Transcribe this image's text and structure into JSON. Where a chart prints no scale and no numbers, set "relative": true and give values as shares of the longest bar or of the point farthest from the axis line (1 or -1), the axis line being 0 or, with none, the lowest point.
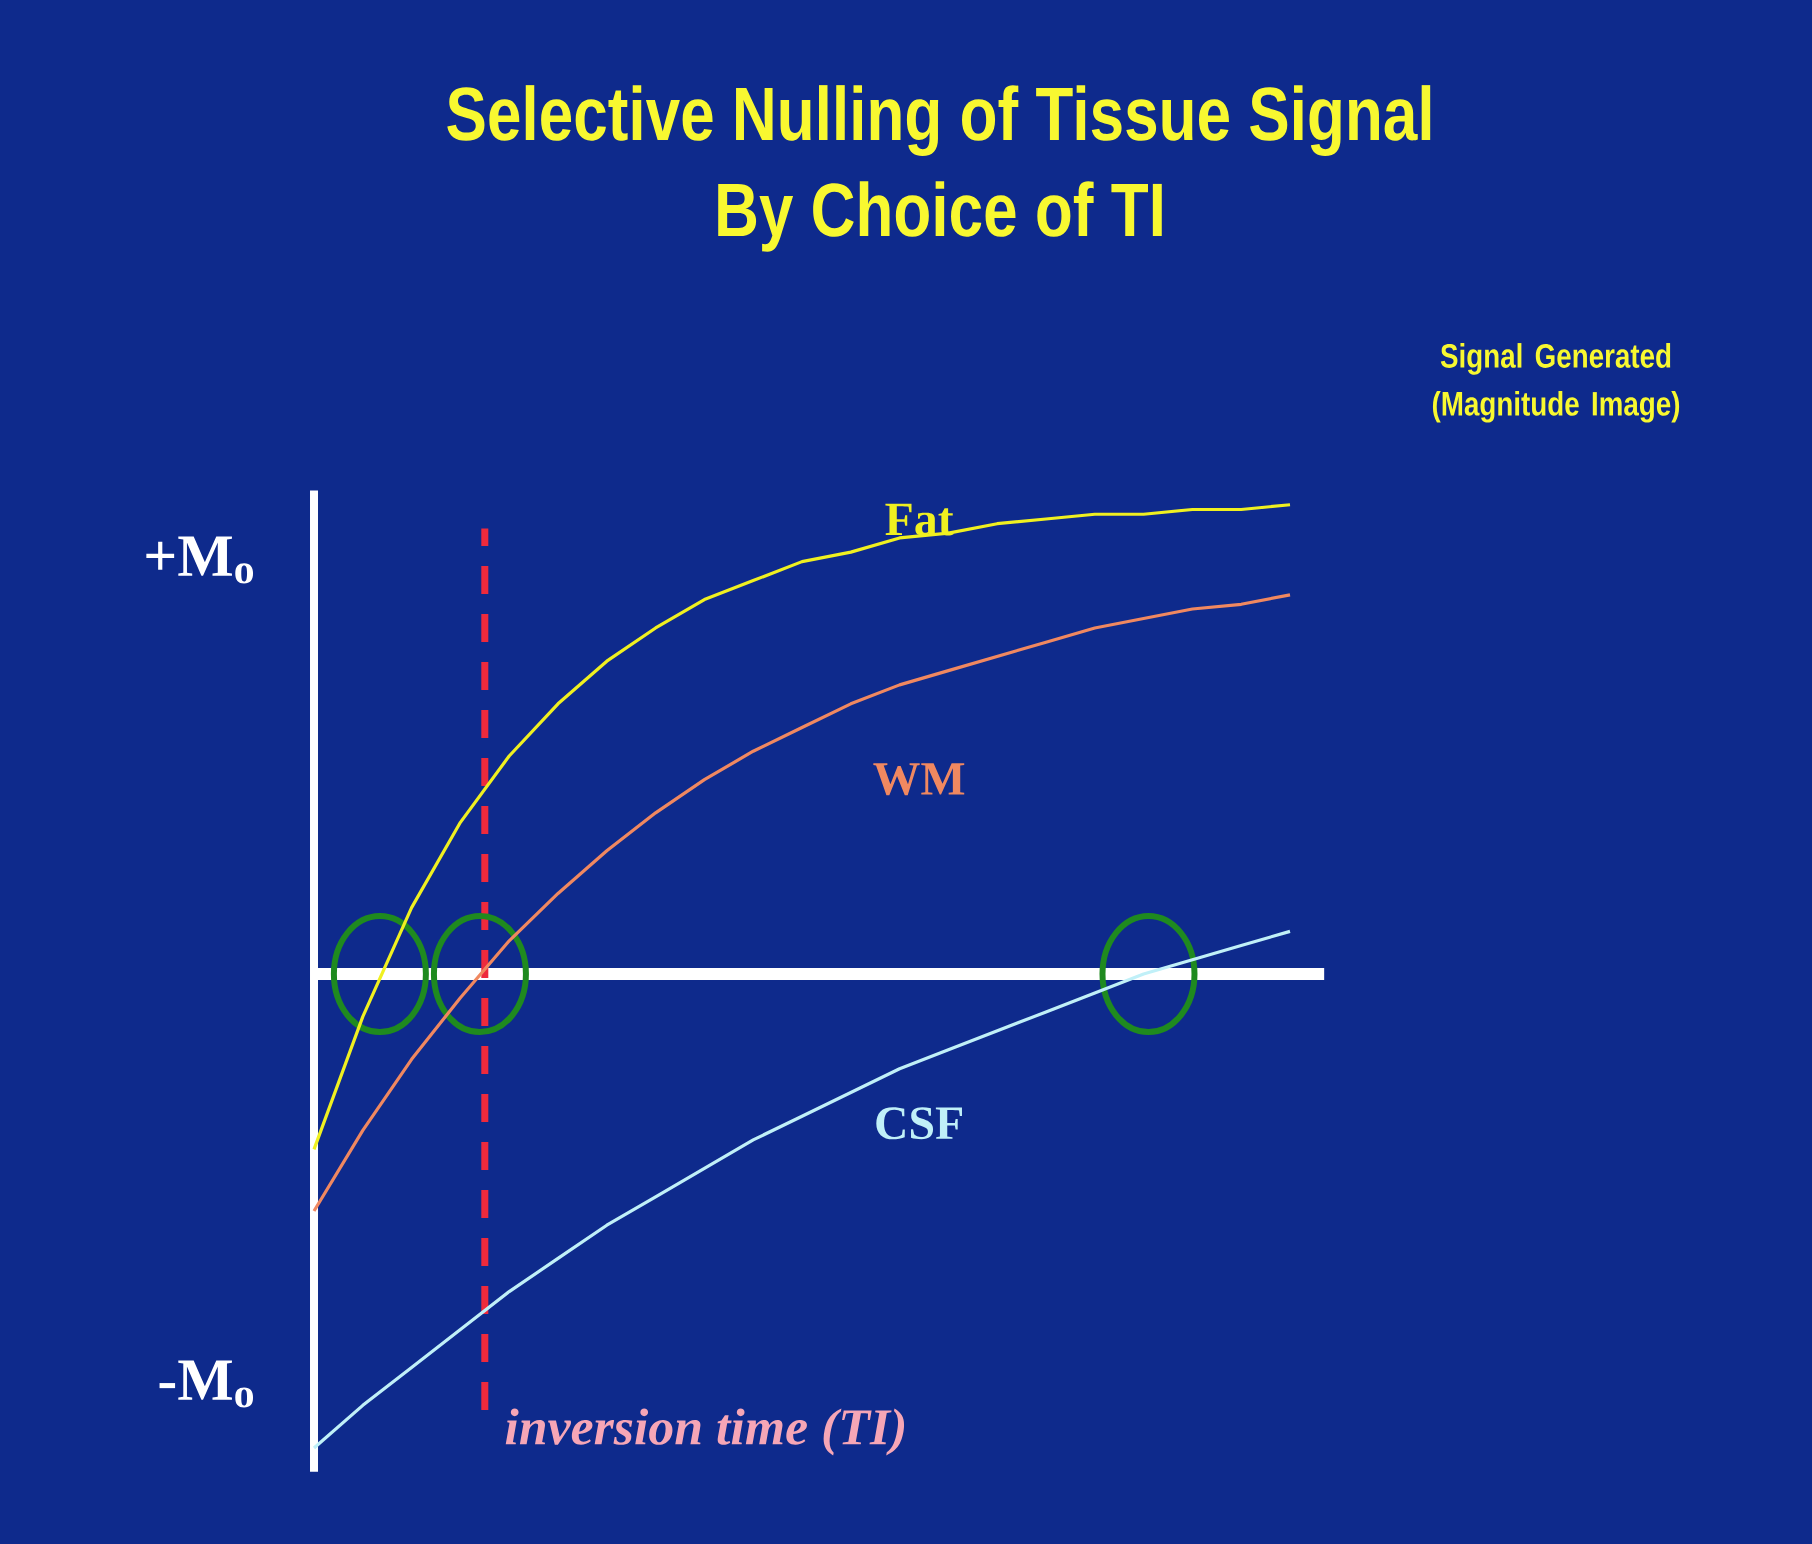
{
  "chart_data": {
    "type": "line",
    "title": "Selective Nulling of Tissue Signal",
    "subtitle": "By Choice of TI",
    "categories": [
      null,
      null,
      null,
      null,
      null,
      null,
      null,
      null,
      null,
      null,
      null,
      null,
      null,
      null,
      null,
      null,
      null,
      null,
      null,
      null,
      null
    ],
    "relative": true,
    "series": [
      {
        "name": "Fat",
        "color": "#f0f020",
        "values": [
          -0.37,
          -0.09,
          0.14,
          0.32,
          0.46,
          0.57,
          0.66,
          0.73,
          0.79,
          0.83,
          0.87,
          0.89,
          0.92,
          0.93,
          0.95,
          0.96,
          0.97,
          0.97,
          0.98,
          0.98,
          0.99
        ]
      },
      {
        "name": "WM",
        "color": "#f08860",
        "values": [
          -0.5,
          -0.33,
          -0.18,
          -0.05,
          0.07,
          0.17,
          0.26,
          0.34,
          0.41,
          0.47,
          0.52,
          0.57,
          0.61,
          0.64,
          0.67,
          0.7,
          0.73,
          0.75,
          0.77,
          0.78,
          0.8
        ]
      },
      {
        "name": "CSF",
        "color": "#c0f0f8",
        "values": [
          -1.0,
          -0.91,
          -0.83,
          -0.75,
          -0.67,
          -0.6,
          -0.53,
          -0.47,
          -0.41,
          -0.35,
          -0.3,
          -0.25,
          -0.2,
          -0.16,
          -0.12,
          -0.08,
          -0.04,
          0.0,
          0.03,
          0.06,
          0.09
        ]
      }
    ],
    "line_style": "solid",
    "annotations": [
      "Signal Generated (Magnitude Image)",
      "+M$_{o}$",
      "-M$_{o}$",
      "inversion time (TI)"
    ]
  }
}
